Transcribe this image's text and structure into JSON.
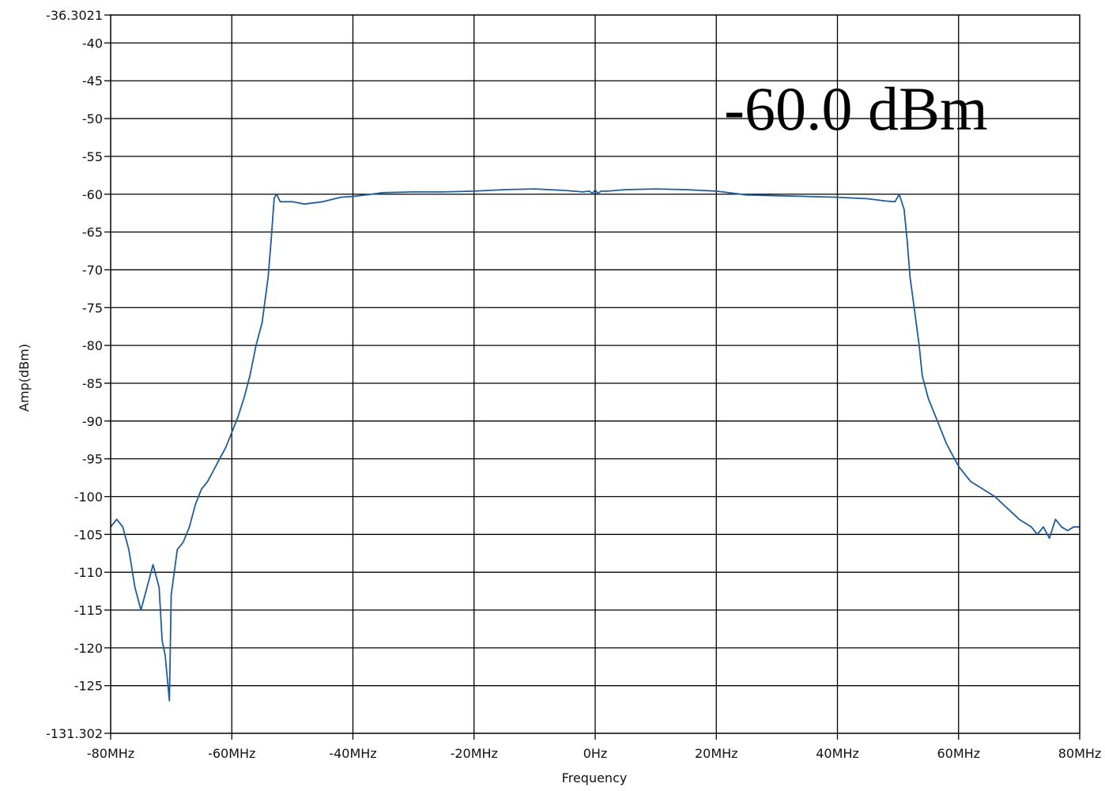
{
  "chart_data": {
    "type": "line",
    "xlabel": "Frequency",
    "ylabel": "Amp(dBm)",
    "xlim": [
      -80,
      80
    ],
    "ylim": [
      -131.302,
      -36.3021
    ],
    "x_unit": "MHz",
    "x_ticks": [
      -80,
      -60,
      -40,
      -20,
      0,
      20,
      40,
      60,
      80
    ],
    "x_tick_labels": [
      "-80MHz",
      "-60MHz",
      "-40MHz",
      "-20MHz",
      "0Hz",
      "20MHz",
      "40MHz",
      "60MHz",
      "80MHz"
    ],
    "y_ticks": [
      -36.3021,
      -40,
      -45,
      -50,
      -55,
      -60,
      -65,
      -70,
      -75,
      -80,
      -85,
      -90,
      -95,
      -100,
      -105,
      -110,
      -115,
      -120,
      -125,
      -131.302
    ],
    "y_tick_labels": [
      "-36.3021",
      "-40",
      "-45",
      "-50",
      "-55",
      "-60",
      "-65",
      "-70",
      "-75",
      "-80",
      "-85",
      "-90",
      "-95",
      "-100",
      "-105",
      "-110",
      "-115",
      "-120",
      "-125",
      "-131.302"
    ],
    "grid": true,
    "grid_x": [
      -60,
      -40,
      -20,
      0,
      20,
      40,
      60
    ],
    "grid_y": [
      -40,
      -45,
      -50,
      -55,
      -60,
      -65,
      -70,
      -75,
      -80,
      -85,
      -90,
      -95,
      -100,
      -105,
      -110,
      -115,
      -120,
      -125
    ],
    "annotation": "-60.0 dBm",
    "line_color": "#1f5c99",
    "series": [
      {
        "x": [
          -80,
          -79,
          -78,
          -77,
          -76,
          -75,
          -74,
          -73,
          -72,
          -71.5,
          -71,
          -70.3,
          -70,
          -69,
          -68,
          -67,
          -66,
          -65,
          -64,
          -63,
          -62,
          -61,
          -60,
          -59,
          -58,
          -57,
          -56,
          -55,
          -54,
          -53.5,
          -53,
          -52.6,
          -52,
          -50,
          -48,
          -45,
          -42,
          -40,
          -37,
          -35,
          -30,
          -25,
          -20,
          -15,
          -10,
          -5,
          -2,
          -1,
          -0.4,
          0,
          0.4,
          1,
          2,
          5,
          10,
          15,
          20,
          25,
          30,
          35,
          40,
          45,
          48,
          49.5,
          50.2,
          51,
          51.5,
          52,
          52.5,
          53,
          53.5,
          54,
          55,
          56,
          57,
          58,
          59,
          60,
          62,
          64,
          66,
          68,
          70,
          72,
          73,
          74,
          75,
          76,
          77,
          78,
          79,
          80
        ],
        "y": [
          -104,
          -103,
          -104,
          -107,
          -112,
          -115,
          -112,
          -109,
          -112,
          -119,
          -121,
          -127,
          -113,
          -107,
          -106,
          -104,
          -101,
          -99,
          -98,
          -96.5,
          -95,
          -93.5,
          -91.5,
          -89.5,
          -87,
          -84,
          -80,
          -77,
          -71,
          -66,
          -60.5,
          -60,
          -61,
          -61,
          -61.3,
          -61,
          -60.4,
          -60.3,
          -60,
          -59.8,
          -59.7,
          -59.7,
          -59.6,
          -59.4,
          -59.3,
          -59.5,
          -59.7,
          -59.6,
          -59.9,
          -59.4,
          -59.9,
          -59.6,
          -59.6,
          -59.4,
          -59.3,
          -59.4,
          -59.6,
          -60.1,
          -60.2,
          -60.3,
          -60.4,
          -60.6,
          -60.9,
          -61,
          -60,
          -62,
          -66,
          -71,
          -74,
          -77,
          -80,
          -84,
          -87,
          -89,
          -91,
          -93,
          -94.5,
          -96,
          -98,
          -99,
          -100,
          -101.5,
          -103,
          -104,
          -105,
          -104,
          -105.5,
          -103,
          -104,
          -104.5,
          -104,
          -104
        ]
      }
    ]
  }
}
